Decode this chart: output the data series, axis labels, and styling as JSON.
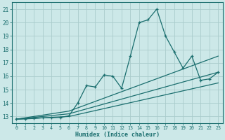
{
  "bg_color": "#cce8e8",
  "grid_color": "#aacccc",
  "line_color": "#1a6e6e",
  "xlabel": "Humidex (Indice chaleur)",
  "xlim": [
    -0.5,
    23.5
  ],
  "ylim": [
    12.5,
    21.5
  ],
  "xticks": [
    0,
    1,
    2,
    3,
    4,
    5,
    6,
    7,
    8,
    9,
    10,
    11,
    12,
    13,
    14,
    15,
    16,
    17,
    18,
    19,
    20,
    21,
    22,
    23
  ],
  "yticks": [
    13,
    14,
    15,
    16,
    17,
    18,
    19,
    20,
    21
  ],
  "line1_x": [
    0,
    1,
    2,
    3,
    4,
    5,
    6,
    7,
    8,
    9,
    10,
    11,
    12,
    13,
    14,
    15,
    16,
    17,
    18,
    19,
    20,
    21,
    22,
    23
  ],
  "line1_y": [
    12.8,
    12.82,
    12.85,
    12.9,
    12.9,
    12.93,
    13.05,
    14.0,
    15.3,
    15.2,
    16.1,
    16.0,
    15.1,
    17.5,
    20.0,
    20.2,
    21.0,
    19.0,
    17.8,
    16.6,
    17.5,
    15.7,
    15.8,
    16.3
  ],
  "line2_x": [
    0,
    6,
    23
  ],
  "line2_y": [
    12.8,
    13.4,
    17.5
  ],
  "line3_x": [
    0,
    6,
    23
  ],
  "line3_y": [
    12.8,
    13.2,
    16.3
  ],
  "line4_x": [
    0,
    6,
    23
  ],
  "line4_y": [
    12.8,
    13.0,
    15.5
  ]
}
